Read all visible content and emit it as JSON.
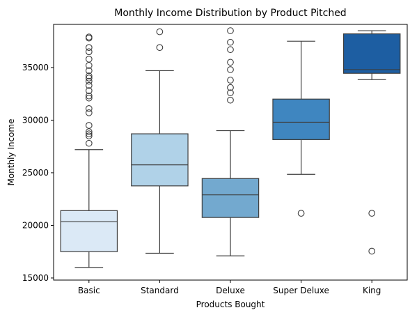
{
  "chart_data": {
    "type": "box",
    "title": "Monthly Income Distribution by Product Pitched",
    "xlabel": "Products Bought",
    "ylabel": "Monthly Income",
    "ylim": [
      14800,
      39100
    ],
    "yticks": [
      15000,
      20000,
      25000,
      30000,
      35000
    ],
    "ytick_labels": [
      "15000",
      "20000",
      "25000",
      "30000",
      "35000"
    ],
    "grid": false,
    "legend": "none",
    "categories": [
      "Basic",
      "Standard",
      "Deluxe",
      "Super Deluxe",
      "King"
    ],
    "boxes": [
      {
        "category": "Basic",
        "color": "#dbe9f6",
        "whisker_low": 16000,
        "q1": 17500,
        "median": 20350,
        "q3": 21400,
        "whisker_high": 27200,
        "outliers": [
          27800,
          28500,
          28700,
          28900,
          29500,
          30700,
          31100,
          32100,
          32300,
          32800,
          33300,
          33700,
          34000,
          34200,
          34700,
          35200,
          35800,
          36500,
          36900,
          37800,
          37900
        ]
      },
      {
        "category": "Standard",
        "color": "#b0d2e8",
        "whisker_low": 17350,
        "q1": 23750,
        "median": 25750,
        "q3": 28700,
        "whisker_high": 34700,
        "outliers": [
          36900,
          38400
        ]
      },
      {
        "category": "Deluxe",
        "color": "#73a9cf",
        "whisker_low": 17100,
        "q1": 20750,
        "median": 22900,
        "q3": 24450,
        "whisker_high": 29000,
        "outliers": [
          31900,
          32600,
          33100,
          33800,
          34800,
          35500,
          36700,
          37400,
          38500
        ]
      },
      {
        "category": "Super Deluxe",
        "color": "#3f86c0",
        "whisker_low": 24850,
        "q1": 28150,
        "median": 29800,
        "q3": 32000,
        "whisker_high": 37500,
        "outliers": [
          21150
        ]
      },
      {
        "category": "King",
        "color": "#1d5ea2",
        "whisker_low": 33850,
        "q1": 34450,
        "median": 34800,
        "q3": 38200,
        "whisker_high": 38500,
        "outliers": [
          21150,
          17550
        ]
      }
    ]
  }
}
